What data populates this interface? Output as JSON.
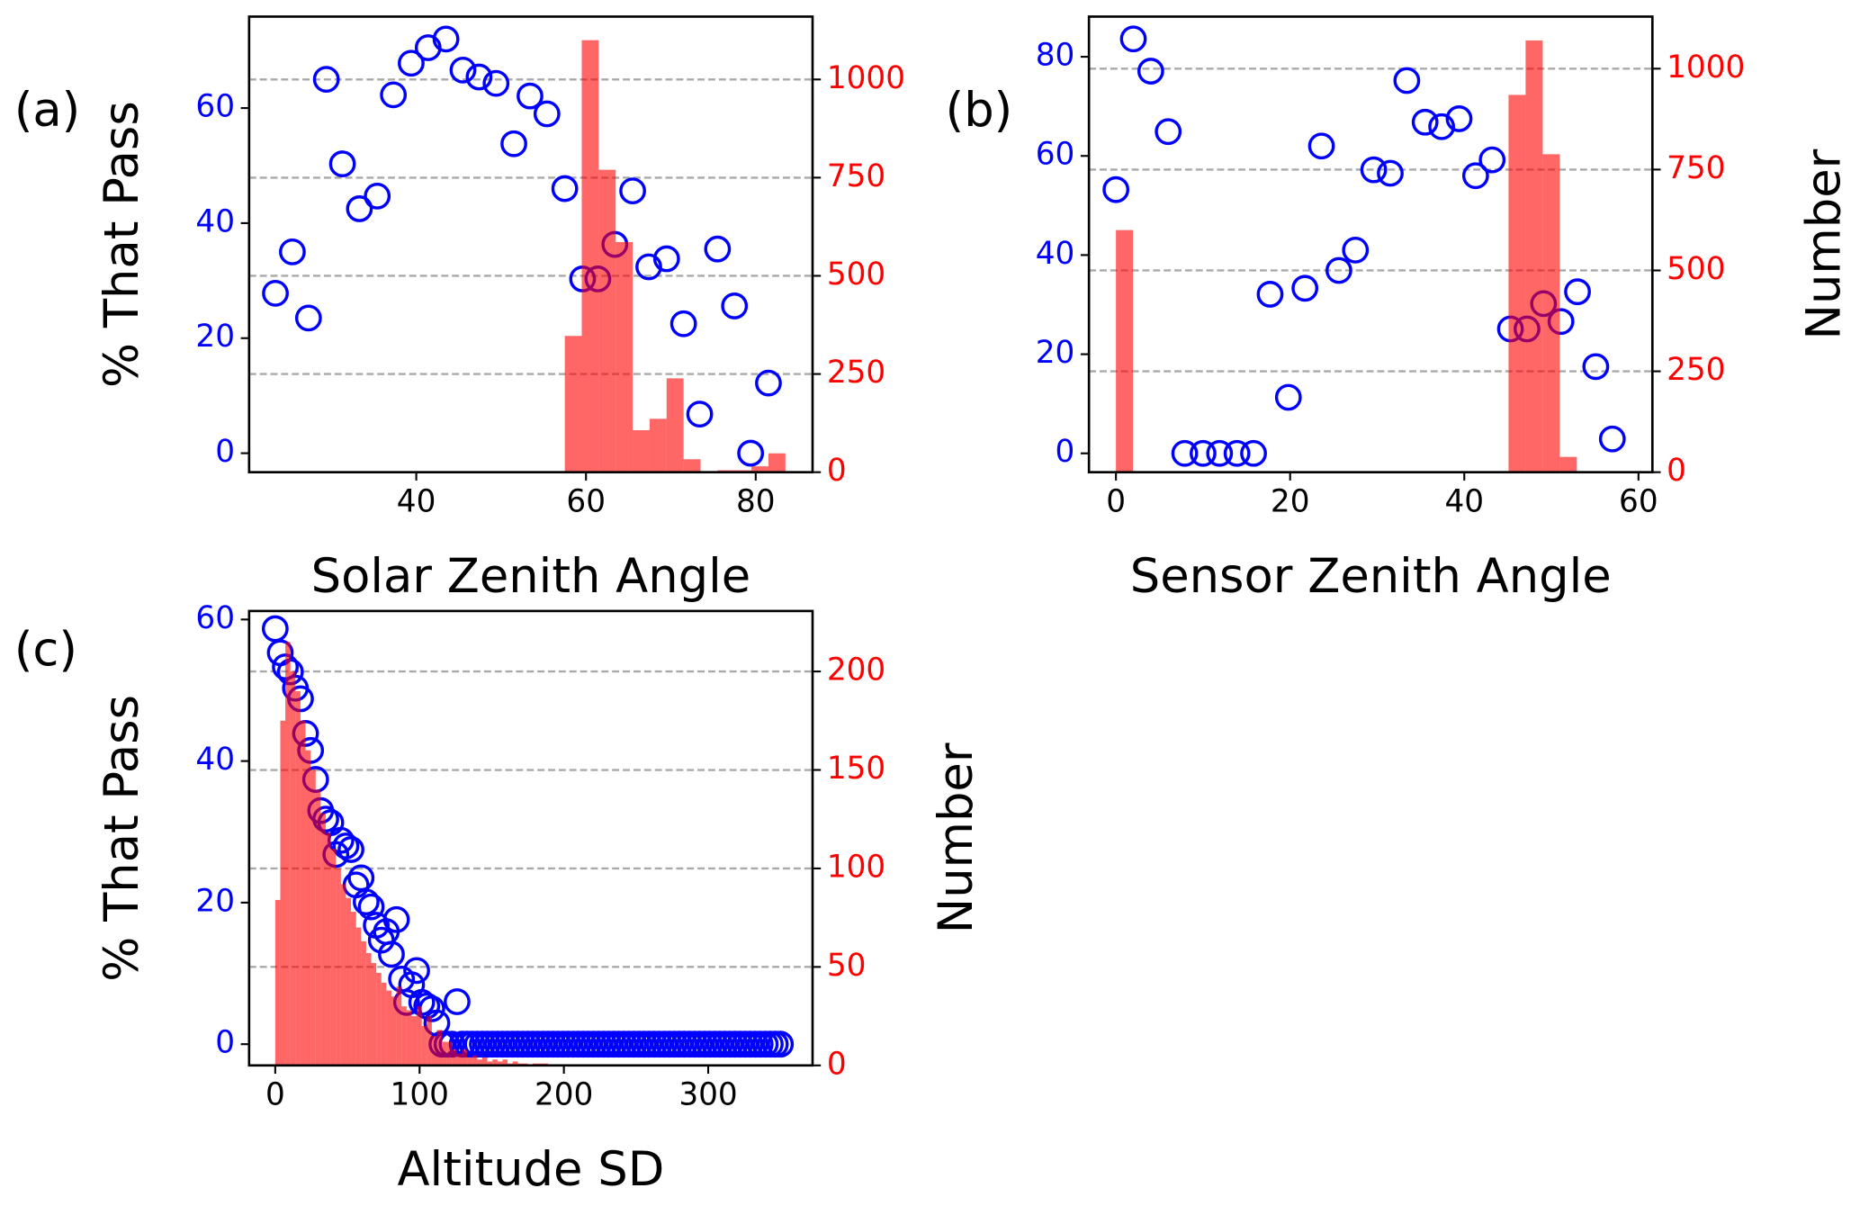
{
  "chart_data": [
    {
      "type": "combo",
      "label": "(a)",
      "xlabel": "Solar Zenith Angle",
      "ylabel": "% That Pass",
      "xlim": [
        20.3,
        86.7
      ],
      "ylim": [
        -3.3,
        75.9
      ],
      "y2lim": [
        0,
        1160
      ],
      "xticks": [
        40,
        60,
        80
      ],
      "yticks": [
        0,
        20,
        40,
        60
      ],
      "y2ticks": [
        0,
        250,
        500,
        750,
        1000
      ],
      "grid": "y2",
      "series": [
        {
          "type": "scatter",
          "axis": "y",
          "color": "blue",
          "x": [
            23.4,
            25.4,
            27.3,
            29.4,
            31.3,
            33.3,
            35.4,
            37.3,
            39.4,
            41.4,
            43.5,
            45.5,
            47.4,
            49.4,
            51.5,
            53.4,
            55.4,
            57.5,
            59.6,
            61.4,
            63.4,
            65.5,
            67.4,
            69.5,
            71.5,
            73.4,
            75.5,
            77.5,
            79.4,
            81.5
          ],
          "values": [
            27.8,
            35,
            23.5,
            65,
            50.3,
            42.5,
            44.7,
            62.3,
            67.8,
            70.5,
            72,
            66.6,
            65.4,
            64.3,
            53.8,
            62.1,
            59,
            46,
            30.3,
            30.3,
            36.3,
            45.6,
            32.4,
            33.8,
            22.5,
            6.8,
            35.5,
            25.6,
            0,
            12.2
          ]
        },
        {
          "type": "histogram",
          "axis": "y2",
          "color": "red",
          "alpha": 0.6,
          "bins": [
            57.5,
            59.5,
            61.5,
            63.5,
            65.5,
            67.5,
            69.5,
            71.5,
            73.5,
            75.5,
            77.5,
            79.5,
            81.5,
            83.5
          ],
          "values": [
            347,
            1100,
            770,
            586,
            107,
            136,
            239,
            33,
            0,
            5,
            5,
            15,
            48
          ]
        }
      ]
    },
    {
      "type": "combo",
      "label": "(b)",
      "xlabel": "Sensor Zenith Angle",
      "y2label": "Number",
      "xlim": [
        -3.1,
        61.6
      ],
      "ylim": [
        -3.8,
        88.1
      ],
      "y2lim": [
        0,
        1129
      ],
      "xticks": [
        0,
        20,
        40,
        60
      ],
      "yticks": [
        0,
        20,
        40,
        60,
        80
      ],
      "y2ticks": [
        0,
        250,
        500,
        750,
        1000
      ],
      "grid": "y2",
      "series": [
        {
          "type": "scatter",
          "axis": "y",
          "color": "blue",
          "x": [
            0,
            2,
            4,
            6,
            7.9,
            10,
            11.9,
            13.9,
            15.8,
            17.7,
            19.8,
            21.7,
            23.6,
            25.6,
            27.5,
            29.6,
            31.5,
            33.4,
            35.5,
            37.4,
            39.4,
            41.3,
            43.2,
            45.3,
            47.2,
            49.1,
            51.1,
            53,
            55.1,
            57
          ],
          "values": [
            53.2,
            83.6,
            77.1,
            64.9,
            0,
            0,
            0,
            0,
            0,
            32.1,
            11.3,
            33.3,
            62,
            36.9,
            41,
            57.2,
            56.5,
            75.2,
            66.8,
            65.9,
            67.5,
            56,
            59.2,
            25.1,
            25.1,
            30.2,
            26.6,
            32.6,
            17.5,
            2.9
          ]
        },
        {
          "type": "histogram",
          "axis": "y2",
          "color": "red",
          "alpha": 0.6,
          "bins": [
            0,
            1.96,
            3.92,
            5.88,
            7.84,
            9.8,
            11.76,
            13.72,
            15.68,
            17.64,
            19.6,
            21.56,
            23.52,
            25.48,
            27.44,
            29.4,
            31.36,
            33.32,
            35.28,
            37.24,
            39.2,
            41.16,
            43.12,
            45.08,
            47.04,
            49.0,
            50.96,
            52.92
          ],
          "values": [
            600,
            0,
            0,
            0,
            0,
            0,
            0,
            0,
            0,
            0,
            0,
            0,
            0,
            0,
            0,
            0,
            0,
            0,
            0,
            0,
            0,
            0,
            0,
            935,
            1070,
            788,
            38
          ]
        }
      ]
    },
    {
      "type": "combo",
      "label": "(c)",
      "xlabel": "Altitude SD",
      "ylabel": "% That Pass",
      "y2label": "Number",
      "xlim": [
        -18.1,
        372.3
      ],
      "ylim": [
        -3.0,
        61.2
      ],
      "y2lim": [
        0,
        230.7
      ],
      "xticks": [
        0,
        100,
        200,
        300
      ],
      "yticks": [
        0,
        20,
        40,
        60
      ],
      "y2ticks": [
        0,
        50,
        100,
        150,
        200
      ],
      "grid": "y2",
      "series": [
        {
          "type": "scatter",
          "axis": "y",
          "color": "blue",
          "x": [
            0,
            3.5,
            7,
            10.5,
            14,
            17.5,
            21,
            24.5,
            28,
            31.5,
            35,
            38.5,
            42,
            45.5,
            49,
            52.5,
            56,
            59.5,
            63,
            66.5,
            70,
            73.5,
            77,
            80.5,
            84,
            87.5,
            91,
            94.5,
            98,
            101.5,
            105,
            108.5,
            112,
            115.5,
            119,
            122.5,
            126,
            129.5,
            133,
            136.5,
            140,
            143.5,
            147,
            150.5,
            154,
            157.5,
            161,
            164.5,
            168,
            171.5,
            175,
            178.5,
            182,
            185.5,
            189,
            192.5,
            196,
            199.5,
            203,
            206.5,
            210,
            213.5,
            217,
            220.5,
            224,
            227.5,
            231,
            234.5,
            238,
            241.5,
            245,
            248.5,
            252,
            255.5,
            259,
            262.5,
            266,
            269.5,
            273,
            276.5,
            280,
            283.5,
            287,
            290.5,
            294,
            297.5,
            301,
            304.5,
            308,
            311.5,
            315,
            318.5,
            322,
            325.5,
            329,
            332.5,
            336,
            339.5,
            343,
            346.5,
            350
          ],
          "values": [
            58.7,
            55.3,
            53.3,
            52.6,
            50.3,
            48.8,
            43.9,
            41.5,
            37.4,
            33,
            31.8,
            31.3,
            26.8,
            28.8,
            28,
            27.5,
            22.5,
            23.5,
            20.1,
            19.4,
            16.8,
            14.7,
            15.9,
            12.7,
            17.6,
            9.2,
            5.9,
            8.4,
            10.4,
            5.9,
            5.4,
            5,
            3,
            0,
            0,
            0,
            6,
            0,
            0,
            0,
            0,
            0,
            0,
            0,
            0,
            0,
            0,
            0,
            0,
            0,
            0,
            0,
            0,
            0,
            0,
            0,
            0,
            0,
            0,
            0,
            0,
            0,
            0,
            0,
            0,
            0,
            0,
            0,
            0,
            0,
            0,
            0,
            0,
            0,
            0,
            0,
            0,
            0,
            0,
            0,
            0,
            0,
            0,
            0,
            0,
            0,
            0,
            0,
            0,
            0,
            0,
            0,
            0,
            0,
            0,
            0,
            0,
            0,
            0,
            0,
            0
          ]
        },
        {
          "type": "histogram",
          "axis": "y2",
          "color": "red",
          "alpha": 0.6,
          "bins": [
            0,
            3.5,
            7,
            10.5,
            14,
            17.5,
            21,
            24.5,
            28,
            31.5,
            35,
            38.5,
            42,
            45.5,
            49,
            52.5,
            56,
            59.5,
            63,
            66.5,
            70,
            73.5,
            77,
            80.5,
            84,
            87.5,
            91,
            94.5,
            98,
            101.5,
            105,
            108.5,
            112,
            115.5,
            119,
            122.5,
            126,
            129.5,
            133,
            136.5,
            140,
            143.5,
            147,
            150.5,
            154,
            157.5,
            161,
            164.5,
            168,
            171.5,
            175,
            178.5,
            182,
            185.5,
            189
          ],
          "values": [
            84,
            175,
            215,
            200,
            190,
            175,
            160,
            150,
            140,
            128,
            118,
            110,
            100,
            92,
            85,
            78,
            70,
            63,
            57,
            52,
            47,
            42,
            38,
            35,
            40,
            30,
            28,
            25,
            30,
            20,
            25,
            15,
            18,
            12,
            12,
            8,
            6,
            8,
            4,
            5,
            3,
            4,
            2,
            3,
            2,
            3,
            1,
            2,
            1,
            1,
            0,
            1,
            1,
            1
          ]
        }
      ]
    }
  ]
}
